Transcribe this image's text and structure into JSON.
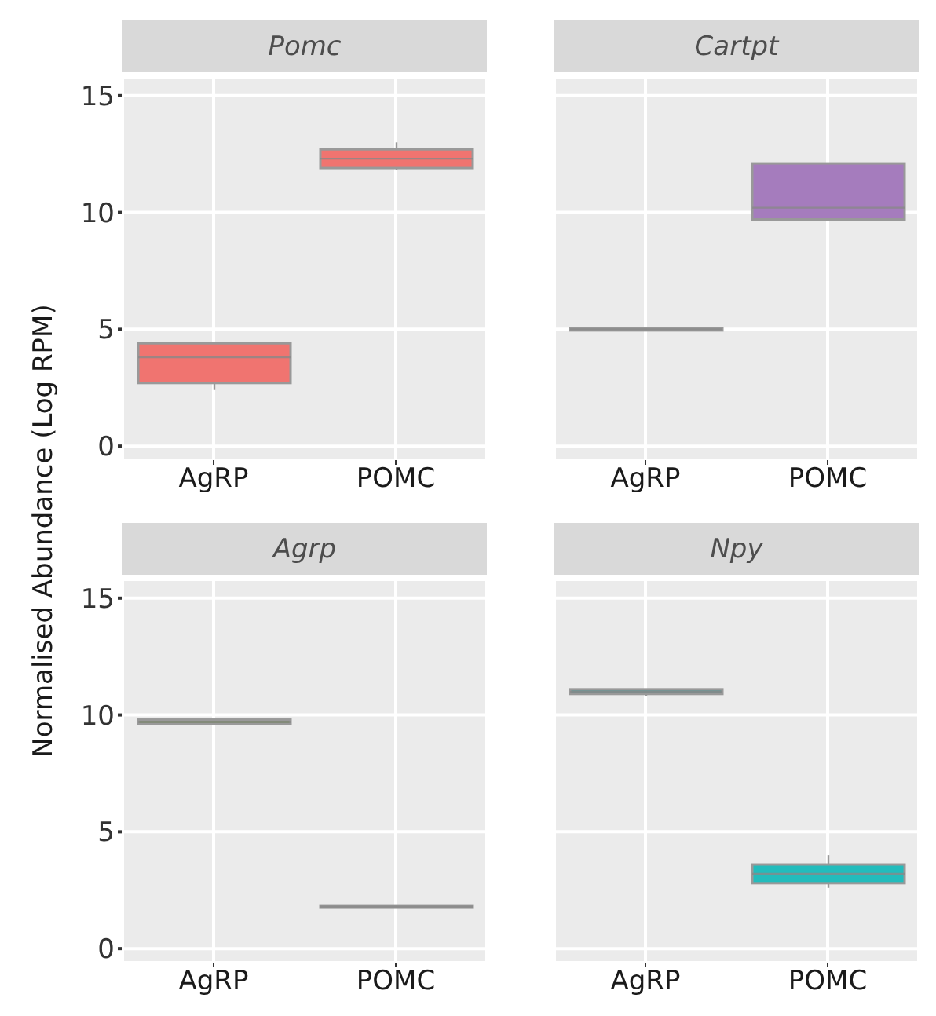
{
  "chart_data": [
    {
      "type": "box",
      "title": "Pomc",
      "ylabel": "Normalised Abundance (Log RPM)",
      "categories": [
        "AgRP",
        "POMC"
      ],
      "colors": [
        "#f07470",
        "#f07470"
      ],
      "boxes": [
        {
          "low": 2.4,
          "q1": 2.7,
          "median": 3.8,
          "q3": 4.4,
          "high": 4.4
        },
        {
          "low": 11.8,
          "q1": 11.9,
          "median": 12.3,
          "q3": 12.7,
          "high": 13.0
        }
      ],
      "ylim": [
        -0.6,
        15.8
      ],
      "yticks": [
        0,
        5,
        10,
        15
      ],
      "grid": true
    },
    {
      "type": "box",
      "title": "Cartpt",
      "categories": [
        "AgRP",
        "POMC"
      ],
      "colors": [
        "#8e8a9a",
        "#a57cbd"
      ],
      "boxes": [
        {
          "low": 4.95,
          "q1": 4.95,
          "median": 5.0,
          "q3": 5.05,
          "high": 5.05
        },
        {
          "low": 9.7,
          "q1": 9.7,
          "median": 10.2,
          "q3": 12.1,
          "high": 12.1
        }
      ],
      "ylim": [
        -0.6,
        15.8
      ],
      "yticks": [
        0,
        5,
        10,
        15
      ],
      "grid": true,
      "tick_labels": "x"
    },
    {
      "type": "box",
      "title": "Agrp",
      "categories": [
        "AgRP",
        "POMC"
      ],
      "colors": [
        "#7e9166",
        "#8e9a80"
      ],
      "boxes": [
        {
          "low": 9.6,
          "q1": 9.6,
          "median": 9.7,
          "q3": 9.8,
          "high": 9.8
        },
        {
          "low": 1.75,
          "q1": 1.75,
          "median": 1.8,
          "q3": 1.85,
          "high": 1.85
        }
      ],
      "ylim": [
        -0.6,
        15.8
      ],
      "yticks": [
        0,
        5,
        10,
        15
      ],
      "grid": true
    },
    {
      "type": "box",
      "title": "Npy",
      "categories": [
        "AgRP",
        "POMC"
      ],
      "colors": [
        "#5e9595",
        "#22bcbc"
      ],
      "boxes": [
        {
          "low": 10.8,
          "q1": 10.9,
          "median": 11.0,
          "q3": 11.1,
          "high": 11.1
        },
        {
          "low": 2.6,
          "q1": 2.8,
          "median": 3.2,
          "q3": 3.6,
          "high": 4.0
        }
      ],
      "ylim": [
        -0.6,
        15.8
      ],
      "yticks": [
        0,
        5,
        10,
        15
      ],
      "grid": true,
      "tick_labels": "x"
    }
  ]
}
